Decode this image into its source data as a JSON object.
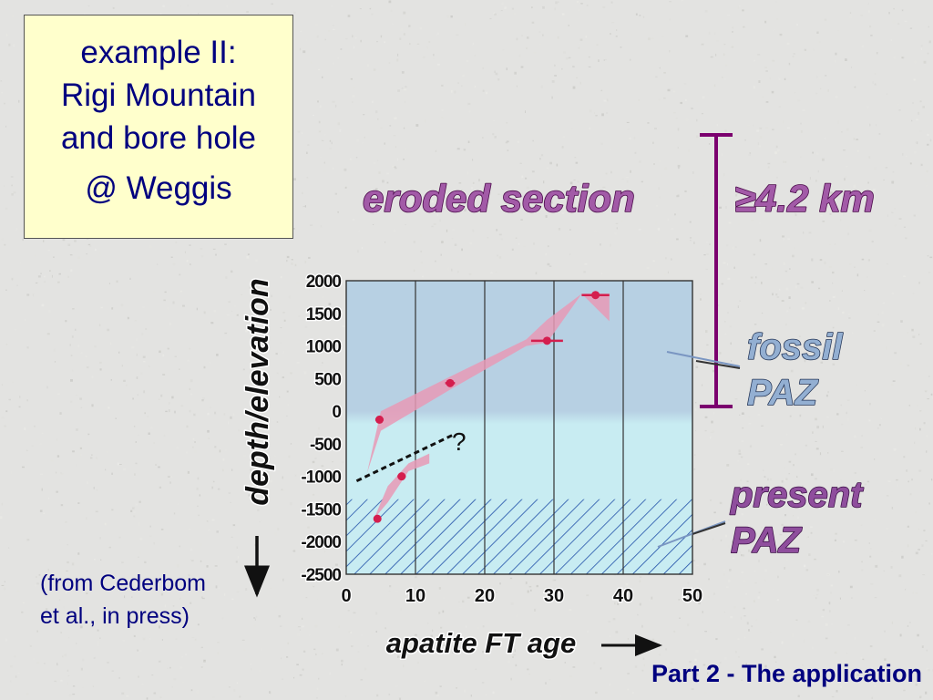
{
  "title_box": {
    "line1": "example II:",
    "line2": "Rigi Mountain",
    "line3": "and bore hole",
    "line4": "@ Weggis"
  },
  "citation": "(from Cederbom et al., in press)",
  "footer": "Part 2 - The application",
  "colors": {
    "fossil_zone": "#b7d0e3",
    "present_zone": "#c8ecf2",
    "data_band": "#e79ab6",
    "data_point": "#d41e4e",
    "eroded_text": "#a25aa7",
    "fossil_text": "#93afd2",
    "present_text": "#8f4e9d",
    "bracket": "#7b006e",
    "title_text": "#00007f",
    "title_box_bg": "#ffffcc"
  },
  "annotations": {
    "eroded_section": "eroded section",
    "eroded_thickness": "≥4.2 km",
    "fossil_paz": [
      "fossil",
      "PAZ"
    ],
    "present_paz": [
      "present",
      "PAZ"
    ],
    "question_mark": "?"
  },
  "chart_data": {
    "type": "scatter",
    "xlabel": "apatite FT age",
    "ylabel": "depth/elevation",
    "xlim": [
      0,
      50
    ],
    "ylim": [
      -2500,
      2000
    ],
    "xticks": [
      0,
      10,
      20,
      30,
      40,
      50
    ],
    "yticks": [
      2000,
      1500,
      1000,
      500,
      0,
      -500,
      -1000,
      -1500,
      -2000,
      -2500
    ],
    "grid": "vertical",
    "zones": {
      "fossil_paz": [
        0,
        2000
      ],
      "present_paz_hatched": [
        -2500,
        -1350
      ]
    },
    "series": [
      {
        "points": [
          {
            "x": 4.8,
            "y": -130,
            "xerr": 0.6
          },
          {
            "x": 15,
            "y": 430,
            "xerr": 0.7
          },
          {
            "x": 29,
            "y": 1080,
            "xerr": 2.3
          },
          {
            "x": 36,
            "y": 1780,
            "xerr": 2.0
          }
        ],
        "band": [
          {
            "x": 3,
            "y_low": -950,
            "y_high": -950
          },
          {
            "x": 5,
            "y_low": -300,
            "y_high": 0
          },
          {
            "x": 15,
            "y_low": 330,
            "y_high": 530
          },
          {
            "x": 26,
            "y_low": 1000,
            "y_high": 1100
          },
          {
            "x": 29,
            "y_low": 1050,
            "y_high": 1400
          },
          {
            "x": 34,
            "y_low": 1800,
            "y_high": 1800
          },
          {
            "x": 38,
            "y_low": 1380,
            "y_high": 1800
          }
        ]
      },
      {
        "points": [
          {
            "x": 4.5,
            "y": -1650,
            "xerr": 0.5
          },
          {
            "x": 8,
            "y": -1000,
            "xerr": 0.6
          }
        ],
        "band": [
          {
            "x": 4,
            "y_low": -1650,
            "y_high": -1650
          },
          {
            "x": 6,
            "y_low": -1400,
            "y_high": -1150
          },
          {
            "x": 9,
            "y_low": -920,
            "y_high": -800
          },
          {
            "x": 12,
            "y_low": -800,
            "y_high": -650
          }
        ]
      }
    ],
    "trend_line": [
      {
        "x": 1.5,
        "y": -1070
      },
      {
        "x": 15.5,
        "y": -360
      }
    ]
  }
}
